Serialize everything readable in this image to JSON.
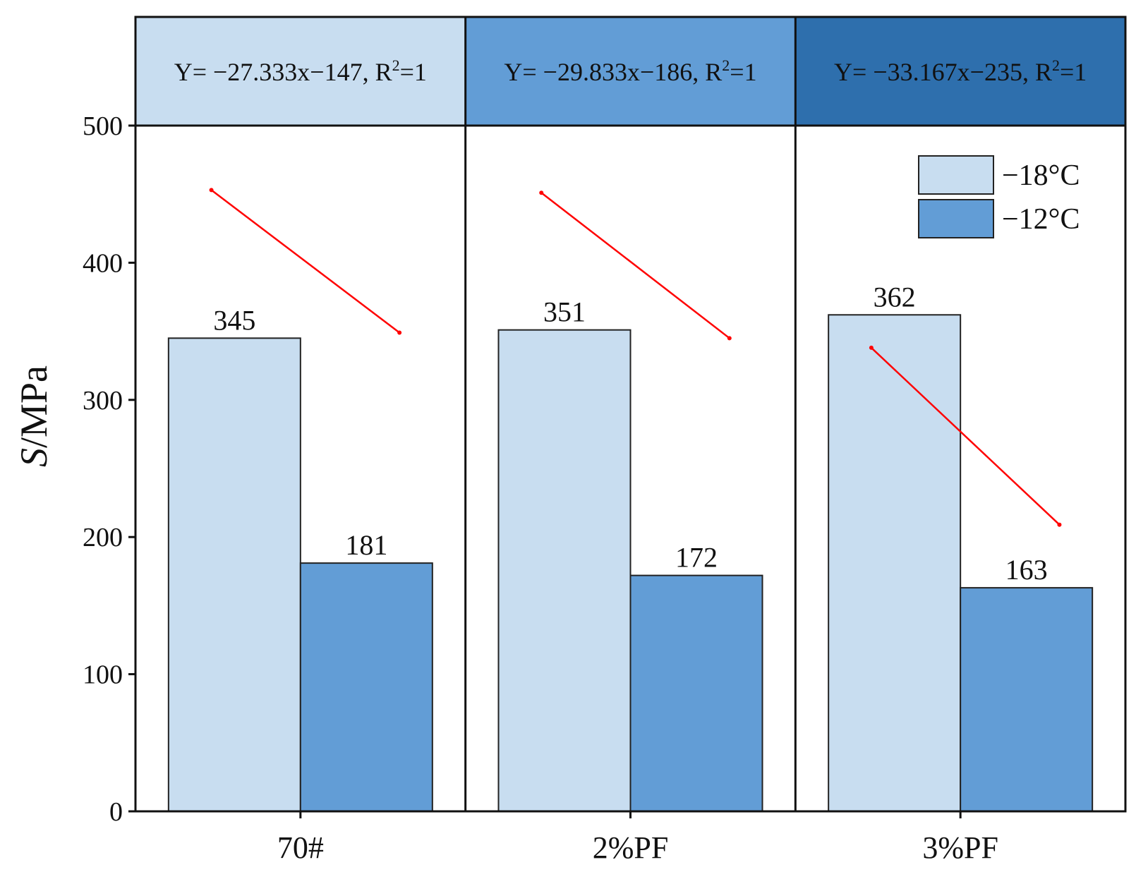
{
  "chart_data": {
    "type": "bar",
    "title": "",
    "xlabel": "",
    "ylabel": {
      "italic": "S",
      "rest": "/MPa"
    },
    "ylim": [
      0,
      500
    ],
    "yticks": [
      "0",
      "100",
      "200",
      "300",
      "400",
      "500"
    ],
    "categories": [
      "70#",
      "2%PF",
      "3%PF"
    ],
    "series": [
      {
        "name": "−18°C",
        "color": "#c8ddf0",
        "values": [
          345,
          351,
          362
        ],
        "labels": [
          "345",
          "351",
          "362"
        ]
      },
      {
        "name": "−12°C",
        "color": "#629dd6",
        "values": [
          181,
          172,
          163
        ],
        "labels": [
          "181",
          "172",
          "163"
        ]
      }
    ],
    "fit_lines": [
      {
        "color": "#ff0000",
        "points": [
          [
            -18,
            453
          ],
          [
            -12,
            349
          ]
        ],
        "equation": {
          "main": "Y= −27.333x−147, R",
          "sup": "2",
          "tail": "=1"
        },
        "header_color": "#c8ddf0"
      },
      {
        "color": "#ff0000",
        "points": [
          [
            -18,
            451
          ],
          [
            -12,
            345
          ]
        ],
        "equation": {
          "main": "Y= −29.833x−186, R",
          "sup": "2",
          "tail": "=1"
        },
        "header_color": "#629dd6"
      },
      {
        "color": "#ff0000",
        "points": [
          [
            -18,
            338
          ],
          [
            -12,
            209
          ]
        ],
        "equation": {
          "main": "Y= −33.167x−235, R",
          "sup": "2",
          "tail": "=1"
        },
        "header_color": "#2e6fad"
      }
    ],
    "legend": {
      "position": "top-right",
      "entries": [
        "−18°C",
        "−12°C"
      ]
    },
    "grid": false
  }
}
